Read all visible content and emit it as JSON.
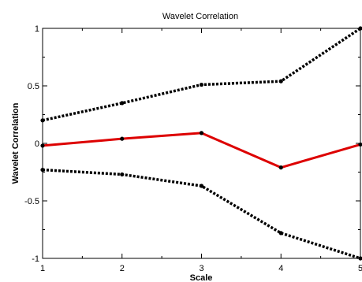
{
  "chart_data": {
    "type": "line",
    "title": "Wavelet Correlation",
    "xlabel": "Scale",
    "ylabel": "Wavelet Correlation",
    "xlim": [
      1,
      5
    ],
    "ylim": [
      -1,
      1
    ],
    "x_ticks": [
      "1",
      "2",
      "3",
      "4",
      "5"
    ],
    "y_ticks": [
      "-1",
      "-0.5",
      "0",
      "0.5",
      "1"
    ],
    "grid": false,
    "x": [
      1,
      2,
      3,
      4,
      5
    ],
    "series": [
      {
        "values": [
          0.2,
          0.35,
          0.51,
          0.54,
          1.0
        ],
        "color": "#000000",
        "style": "dotted"
      },
      {
        "values": [
          -0.02,
          0.04,
          0.09,
          -0.21,
          -0.01
        ],
        "color": "#dd0000",
        "style": "solid"
      },
      {
        "values": [
          -0.23,
          -0.27,
          -0.37,
          -0.78,
          -1.0
        ],
        "color": "#000000",
        "style": "dotted"
      }
    ]
  }
}
